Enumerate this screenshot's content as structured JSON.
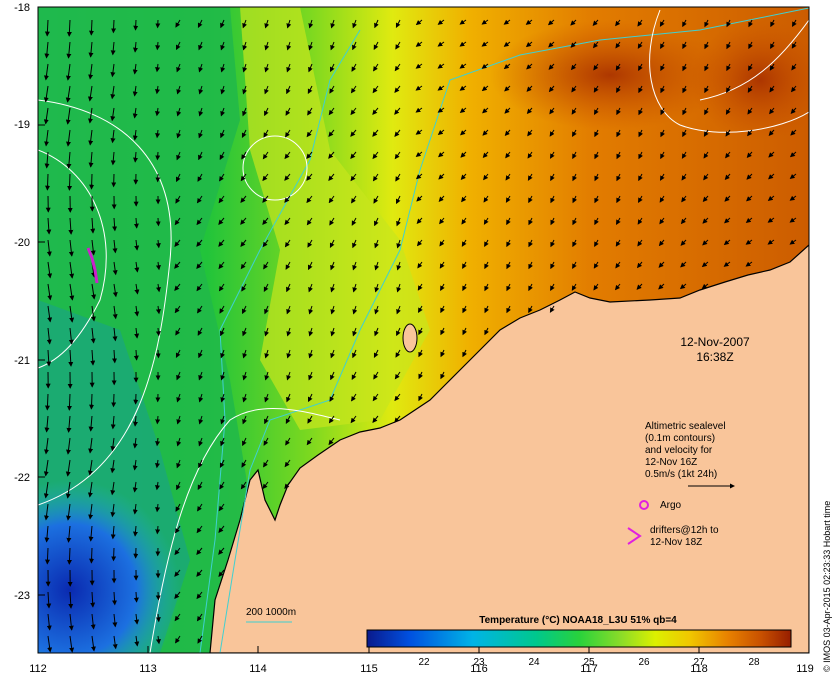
{
  "map": {
    "x_ticks": [
      "112",
      "113",
      "114",
      "115",
      "116",
      "117",
      "118",
      "119"
    ],
    "y_ticks": [
      "-18",
      "-19",
      "-20",
      "-21",
      "-22",
      "-23"
    ],
    "x_range": [
      112,
      119
    ],
    "y_range": [
      -23.5,
      -18
    ]
  },
  "annotations": {
    "date": "12-Nov-2007",
    "time": "16:38Z",
    "legend_lines": [
      "Altimetric sealevel",
      "(0.1m contours)",
      "and velocity for",
      "12-Nov 16Z",
      "0.5m/s (1kt 24h)"
    ],
    "argo": "Argo",
    "drifters_1": "drifters@12h to",
    "drifters_2": "12-Nov 18Z",
    "isobath": "200  1000m",
    "credit": "© IMOS 03-Apr-2015 02:23:33 Hobart time"
  },
  "colorbar": {
    "title": "Temperature (°C) NOAA18_L3U 51% qb=4",
    "ticks": [
      "22",
      "23",
      "24",
      "25",
      "26",
      "27",
      "28"
    ],
    "range": [
      21.6,
      28.6
    ],
    "colors": [
      "#0a1a8c",
      "#0050e0",
      "#00b4e6",
      "#00c88c",
      "#28d23c",
      "#8cdc28",
      "#dcf000",
      "#f0c800",
      "#e88200",
      "#c85000",
      "#961e00"
    ]
  },
  "colors": {
    "land": "#f9c59a",
    "warm": "#d96a00",
    "cool": "#16b84a",
    "isobath": "#40d0d0",
    "contour": "#ffffff",
    "argo": "#e020e0",
    "drifter": "#cc22cc"
  }
}
